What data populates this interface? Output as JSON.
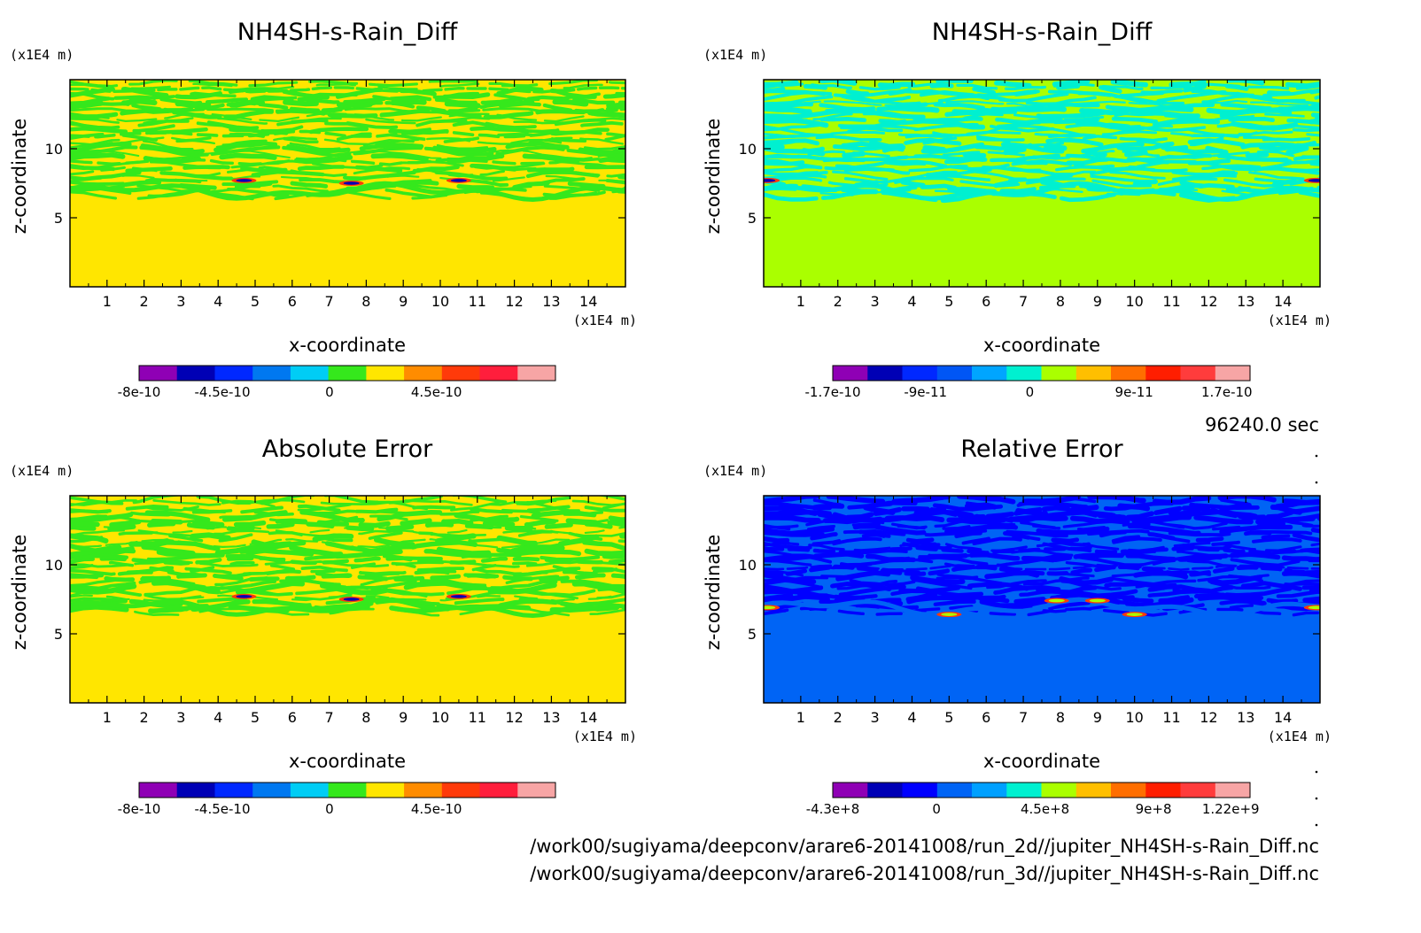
{
  "time_label": "96240.0 sec",
  "file_paths": [
    "/work00/sugiyama/deepconv/arare6-20141008/run_2d//jupiter_NH4SH-s-Rain_Diff.nc",
    "/work00/sugiyama/deepconv/arare6-20141008/run_3d//jupiter_NH4SH-s-Rain_Diff.nc"
  ],
  "chart_data": [
    {
      "type": "heatmap",
      "title": "NH4SH-s-Rain_Diff",
      "xlabel": "x-coordinate",
      "ylabel": "z-coordinate",
      "x_unit": "(x1E4 m)",
      "z_unit": "(x1E4 m)",
      "xlim": [
        0,
        15
      ],
      "zlim": [
        0,
        15
      ],
      "x_ticks": [
        "1",
        "2",
        "3",
        "4",
        "5",
        "6",
        "7",
        "8",
        "9",
        "10",
        "11",
        "12",
        "13",
        "14"
      ],
      "z_ticks": [
        "5",
        "10"
      ],
      "dominant_level": "0 to 7.5e-11 (lower region)",
      "colorbar": {
        "labels": [
          "-8e-10",
          "-4.5e-10",
          "0",
          "4.5e-10"
        ],
        "colors": [
          "#8f00b5",
          "#0000b5",
          "#0028ff",
          "#0078f0",
          "#00cdf5",
          "#35e81c",
          "#ffe600",
          "#ff8c00",
          "#ff3a0a",
          "#ff1e3c",
          "#f7a5a5"
        ],
        "range": [
          -8e-10,
          9.5e-10
        ]
      }
    },
    {
      "type": "heatmap",
      "title": "NH4SH-s-Rain_Diff",
      "xlabel": "x-coordinate",
      "ylabel": "z-coordinate",
      "x_unit": "(x1E4 m)",
      "z_unit": "(x1E4 m)",
      "xlim": [
        0,
        15
      ],
      "zlim": [
        0,
        15
      ],
      "x_ticks": [
        "1",
        "2",
        "3",
        "4",
        "5",
        "6",
        "7",
        "8",
        "9",
        "10",
        "11",
        "12",
        "13",
        "14"
      ],
      "z_ticks": [
        "5",
        "10"
      ],
      "dominant_level": "0 to 1.7e-11 (lower region)",
      "colorbar": {
        "labels": [
          "-1.7e-10",
          "-9e-11",
          "0",
          "9e-11",
          "1.7e-10"
        ],
        "colors": [
          "#8f00b5",
          "#0000b5",
          "#0028ff",
          "#0056f5",
          "#00a5ff",
          "#00f0d0",
          "#aaff00",
          "#ffbf00",
          "#ff6e00",
          "#ff1e00",
          "#ff3c3c",
          "#f7a5a5"
        ],
        "range": [
          -1.7e-10,
          1.9e-10
        ]
      }
    },
    {
      "type": "heatmap",
      "title": "Absolute Error",
      "xlabel": "x-coordinate",
      "ylabel": "z-coordinate",
      "x_unit": "(x1E4 m)",
      "z_unit": "(x1E4 m)",
      "xlim": [
        0,
        15
      ],
      "zlim": [
        0,
        15
      ],
      "x_ticks": [
        "1",
        "2",
        "3",
        "4",
        "5",
        "6",
        "7",
        "8",
        "9",
        "10",
        "11",
        "12",
        "13",
        "14"
      ],
      "z_ticks": [
        "5",
        "10"
      ],
      "dominant_level": "0 to 7.5e-11 (lower region)",
      "colorbar": {
        "labels": [
          "-8e-10",
          "-4.5e-10",
          "0",
          "4.5e-10"
        ],
        "colors": [
          "#8f00b5",
          "#0000b5",
          "#0028ff",
          "#0078f0",
          "#00cdf5",
          "#35e81c",
          "#ffe600",
          "#ff8c00",
          "#ff3a0a",
          "#ff1e3c",
          "#f7a5a5"
        ],
        "range": [
          -8e-10,
          9.5e-10
        ]
      }
    },
    {
      "type": "heatmap",
      "title": "Relative Error",
      "xlabel": "x-coordinate",
      "ylabel": "z-coordinate",
      "x_unit": "(x1E4 m)",
      "z_unit": "(x1E4 m)",
      "xlim": [
        0,
        15
      ],
      "zlim": [
        0,
        15
      ],
      "x_ticks": [
        "1",
        "2",
        "3",
        "4",
        "5",
        "6",
        "7",
        "8",
        "9",
        "10",
        "11",
        "12",
        "13",
        "14"
      ],
      "z_ticks": [
        "5",
        "10"
      ],
      "dominant_level": "0 to 1.5e+8 (lower region)",
      "colorbar": {
        "labels": [
          "-4.3e+8",
          "0",
          "4.5e+8",
          "9e+8",
          "1.22e+9"
        ],
        "colors": [
          "#8f00b5",
          "#0000b5",
          "#0000ff",
          "#0064f5",
          "#00a0ff",
          "#00f0d0",
          "#aaff00",
          "#ffbf00",
          "#ff6e00",
          "#ff1e00",
          "#ff3c3c",
          "#f7a5a5"
        ],
        "range": [
          -430000000.0,
          1300000000.0
        ]
      }
    }
  ]
}
